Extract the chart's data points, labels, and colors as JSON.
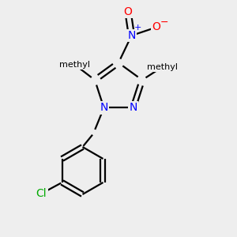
{
  "bg_color": "#eeeeee",
  "bond_color": "#000000",
  "bond_width": 1.6,
  "dbo": 0.05,
  "atom_colors": {
    "N": "#0000ff",
    "O": "#ff0000",
    "Cl": "#00aa00",
    "C": "#000000"
  },
  "fs": 10,
  "fs_small": 9
}
